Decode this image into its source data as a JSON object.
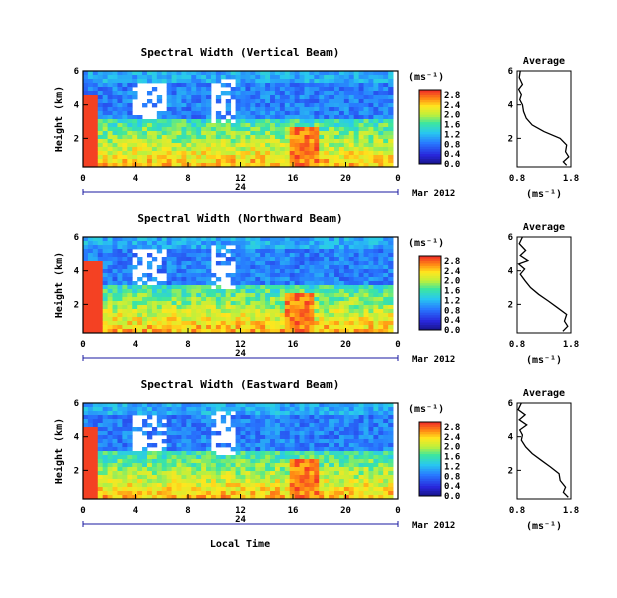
{
  "figure": {
    "common_xlabel": "Local Time",
    "date_label": "Mar 2012",
    "day_label": "24"
  },
  "chart_data": [
    {
      "type": "heatmap",
      "title": "Spectral Width (Vertical Beam)",
      "ylabel": "Height (km)",
      "xlabel": "",
      "x_ticks": [
        "0",
        "4",
        "8",
        "12",
        "16",
        "20",
        "0"
      ],
      "xlim": [
        0,
        24
      ],
      "y_ticks": [
        "6",
        "4",
        "2"
      ],
      "ylim": [
        0.3,
        6.0
      ],
      "colorbar_unit": "(ms⁻¹)",
      "colorbar_ticks": [
        "2.8",
        "2.4",
        "2.0",
        "1.6",
        "1.2",
        "0.8",
        "0.4",
        "0.0"
      ],
      "colorbar_range": [
        0.0,
        3.0
      ],
      "features": {
        "red_band_x": [
          0.0,
          1.2
        ],
        "hot_cluster_x": [
          15.8,
          18.0
        ],
        "data_end_x": 23.5
      },
      "average_profile": {
        "title": "Average",
        "xlabel": "(ms⁻¹)",
        "x_ticks": [
          "0.8",
          "1.8"
        ],
        "y_ticks": [
          "6",
          "4",
          "2"
        ],
        "xlim": [
          0.8,
          1.8
        ],
        "ylim": [
          0.3,
          6.0
        ],
        "height_km": [
          6.0,
          5.6,
          5.2,
          4.9,
          4.6,
          4.3,
          4.0,
          3.6,
          3.2,
          2.8,
          2.4,
          2.0,
          1.6,
          1.2,
          0.9,
          0.6,
          0.4
        ],
        "width_ms": [
          0.86,
          0.84,
          0.9,
          0.83,
          0.88,
          0.85,
          0.9,
          0.92,
          0.97,
          1.08,
          1.3,
          1.6,
          1.72,
          1.7,
          1.76,
          1.66,
          1.72
        ]
      }
    },
    {
      "type": "heatmap",
      "title": "Spectral Width (Northward Beam)",
      "ylabel": "Height (km)",
      "xlabel": "",
      "x_ticks": [
        "0",
        "4",
        "8",
        "12",
        "16",
        "20",
        "0"
      ],
      "xlim": [
        0,
        24
      ],
      "y_ticks": [
        "6",
        "4",
        "2"
      ],
      "ylim": [
        0.3,
        6.0
      ],
      "colorbar_unit": "(ms⁻¹)",
      "colorbar_ticks": [
        "2.8",
        "2.4",
        "2.0",
        "1.6",
        "1.2",
        "0.8",
        "0.4",
        "0.0"
      ],
      "colorbar_range": [
        0.0,
        3.0
      ],
      "features": {
        "red_band_x": [
          0.0,
          1.5
        ],
        "hot_cluster_x": [
          15.5,
          17.5
        ],
        "data_end_x": 23.5
      },
      "average_profile": {
        "title": "Average",
        "xlabel": "(ms⁻¹)",
        "x_ticks": [
          "0.8",
          "1.8"
        ],
        "y_ticks": [
          "6",
          "4",
          "2"
        ],
        "xlim": [
          0.8,
          1.8
        ],
        "ylim": [
          0.3,
          6.0
        ],
        "height_km": [
          6.0,
          5.6,
          5.2,
          4.9,
          4.6,
          4.4,
          4.1,
          3.8,
          3.4,
          3.0,
          2.6,
          2.2,
          1.8,
          1.4,
          1.0,
          0.7,
          0.4
        ],
        "width_ms": [
          0.9,
          0.84,
          0.96,
          0.86,
          1.0,
          0.83,
          0.94,
          0.86,
          0.95,
          1.05,
          1.2,
          1.38,
          1.55,
          1.72,
          1.68,
          1.74,
          1.65
        ]
      }
    },
    {
      "type": "heatmap",
      "title": "Spectral Width (Eastward Beam)",
      "ylabel": "Height (km)",
      "xlabel": "Local Time",
      "x_ticks": [
        "0",
        "4",
        "8",
        "12",
        "16",
        "20",
        "0"
      ],
      "xlim": [
        0,
        24
      ],
      "y_ticks": [
        "6",
        "4",
        "2"
      ],
      "ylim": [
        0.3,
        6.0
      ],
      "colorbar_unit": "(ms⁻¹)",
      "colorbar_ticks": [
        "2.8",
        "2.4",
        "2.0",
        "1.6",
        "1.2",
        "0.8",
        "0.4",
        "0.0"
      ],
      "colorbar_range": [
        0.0,
        3.0
      ],
      "features": {
        "red_band_x": [
          0.0,
          1.2
        ],
        "hot_cluster_x": [
          15.8,
          18.0
        ],
        "data_end_x": 23.5
      },
      "average_profile": {
        "title": "Average",
        "xlabel": "(ms⁻¹)",
        "x_ticks": [
          "0.8",
          "1.8"
        ],
        "y_ticks": [
          "6",
          "4",
          "2"
        ],
        "xlim": [
          0.8,
          1.8
        ],
        "ylim": [
          0.3,
          6.0
        ],
        "height_km": [
          6.0,
          5.6,
          5.3,
          5.0,
          4.7,
          4.4,
          4.1,
          3.8,
          3.4,
          3.0,
          2.6,
          2.2,
          1.8,
          1.4,
          1.0,
          0.7,
          0.4
        ],
        "width_ms": [
          0.88,
          0.82,
          0.95,
          0.84,
          0.98,
          0.85,
          0.9,
          0.88,
          0.96,
          1.08,
          1.25,
          1.42,
          1.58,
          1.6,
          1.7,
          1.66,
          1.75
        ]
      }
    }
  ]
}
